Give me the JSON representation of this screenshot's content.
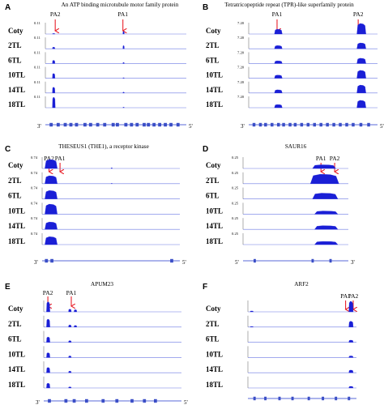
{
  "chart_data": [
    {
      "type": "area",
      "panel_label": "A",
      "title": "An ATP binding microtubule motor family protein",
      "samples": [
        "Coty",
        "2TL",
        "6TL",
        "10TL",
        "14TL",
        "18TL"
      ],
      "ymax_labels": [
        "0.11",
        "0.11",
        "0.11",
        "0.11",
        "0.11",
        "0.11"
      ],
      "ymax": 0.11,
      "strand_left": "3'",
      "strand_right": "5'",
      "sites": [
        {
          "name": "PA2",
          "x": 0.07
        },
        {
          "name": "PA1",
          "x": 0.55
        }
      ],
      "peaks": [
        [
          {
            "x": 0.05,
            "w": 0.018,
            "h": 0.05
          },
          {
            "x": 0.55,
            "w": 0.01,
            "h": 0.25
          }
        ],
        [
          {
            "x": 0.05,
            "w": 0.018,
            "h": 0.15
          },
          {
            "x": 0.55,
            "w": 0.01,
            "h": 0.3
          }
        ],
        [
          {
            "x": 0.05,
            "w": 0.018,
            "h": 0.3
          },
          {
            "x": 0.55,
            "w": 0.01,
            "h": 0.1
          }
        ],
        [
          {
            "x": 0.05,
            "w": 0.018,
            "h": 0.45
          },
          {
            "x": 0.55,
            "w": 0.01,
            "h": 0.05
          }
        ],
        [
          {
            "x": 0.05,
            "w": 0.018,
            "h": 0.55
          },
          {
            "x": 0.55,
            "w": 0.01,
            "h": 0.08
          }
        ],
        [
          {
            "x": 0.05,
            "w": 0.02,
            "h": 1.0
          },
          {
            "x": 0.55,
            "w": 0.01,
            "h": 0.05
          }
        ]
      ],
      "exons": [
        0.03,
        0.08,
        0.13,
        0.17,
        0.21,
        0.27,
        0.31,
        0.36,
        0.41,
        0.47,
        0.5,
        0.56,
        0.6,
        0.64,
        0.69,
        0.72,
        0.76,
        0.8,
        0.84,
        0.88,
        0.93
      ],
      "exon_color": "#3b4fc7"
    },
    {
      "type": "area",
      "panel_label": "B",
      "title": "Tetratricopeptide repeat (TPR)-like superfamily protein",
      "samples": [
        "Coty",
        "2TL",
        "6TL",
        "10TL",
        "14TL",
        "18TL"
      ],
      "ymax_labels": [
        "7.20",
        "7.20",
        "7.20",
        "7.20",
        "7.20",
        "7.20"
      ],
      "ymax": 7.2,
      "strand_left": "3'",
      "strand_right": "5'",
      "sites": [
        {
          "name": "PA1",
          "x": 0.22
        },
        {
          "name": "PA2",
          "x": 0.85
        }
      ],
      "peaks": [
        [
          {
            "x": 0.2,
            "w": 0.06,
            "h": 0.45
          },
          {
            "x": 0.84,
            "w": 0.07,
            "h": 1.0
          }
        ],
        [
          {
            "x": 0.2,
            "w": 0.06,
            "h": 0.3
          },
          {
            "x": 0.84,
            "w": 0.07,
            "h": 0.55
          }
        ],
        [
          {
            "x": 0.2,
            "w": 0.06,
            "h": 0.25
          },
          {
            "x": 0.84,
            "w": 0.07,
            "h": 0.5
          }
        ],
        [
          {
            "x": 0.2,
            "w": 0.06,
            "h": 0.3
          },
          {
            "x": 0.84,
            "w": 0.07,
            "h": 0.75
          }
        ],
        [
          {
            "x": 0.2,
            "w": 0.06,
            "h": 0.3
          },
          {
            "x": 0.84,
            "w": 0.07,
            "h": 0.75
          }
        ],
        [
          {
            "x": 0.2,
            "w": 0.06,
            "h": 0.3
          },
          {
            "x": 0.84,
            "w": 0.07,
            "h": 0.7
          }
        ]
      ],
      "exons": [
        0.03,
        0.08,
        0.12,
        0.17,
        0.22,
        0.26,
        0.31,
        0.35,
        0.4,
        0.45,
        0.5,
        0.55,
        0.6,
        0.65,
        0.7,
        0.75,
        0.8,
        0.86,
        0.92
      ],
      "exon_color": "#3b4fc7"
    },
    {
      "type": "area",
      "panel_label": "C",
      "title": "THESEUS1 (THE1), a receptor kinase",
      "samples": [
        "Coty",
        "2TL",
        "6TL",
        "10TL",
        "14TL",
        "18TL"
      ],
      "ymax_labels": [
        "0.74",
        "0.74",
        "0.74",
        "0.74",
        "0.74",
        "0.74"
      ],
      "ymax": 0.74,
      "strand_left": "3'",
      "strand_right": "5'",
      "sites": [
        {
          "name": "PA2",
          "x": 0.05
        },
        {
          "name": "PA1",
          "x": 0.13
        }
      ],
      "peaks": [
        [
          {
            "x": 0.02,
            "w": 0.09,
            "h": 0.85
          },
          {
            "x": 0.5,
            "w": 0.01,
            "h": 0.06
          }
        ],
        [
          {
            "x": 0.02,
            "w": 0.09,
            "h": 0.75
          },
          {
            "x": 0.5,
            "w": 0.01,
            "h": 0.03
          }
        ],
        [
          {
            "x": 0.02,
            "w": 0.09,
            "h": 0.8
          }
        ],
        [
          {
            "x": 0.02,
            "w": 0.09,
            "h": 0.95
          }
        ],
        [
          {
            "x": 0.02,
            "w": 0.09,
            "h": 0.7
          }
        ],
        [
          {
            "x": 0.02,
            "w": 0.09,
            "h": 0.75
          }
        ]
      ],
      "exons": [
        0.02,
        0.06,
        0.93
      ],
      "exon_color": "#3b4fc7"
    },
    {
      "type": "area",
      "panel_label": "D",
      "title": "SAUR16",
      "samples": [
        "Coty",
        "2TL",
        "6TL",
        "10TL",
        "14TL",
        "18TL"
      ],
      "ymax_labels": [
        "0.25",
        "0.25",
        "0.25",
        "0.25",
        "0.25",
        "0.25"
      ],
      "ymax": 0.25,
      "strand_left": "5'",
      "strand_right": "3'",
      "sites": [
        {
          "name": "PA1",
          "x": 0.74
        },
        {
          "name": "PA2",
          "x": 0.87
        }
      ],
      "peaks": [
        [
          {
            "x": 0.66,
            "w": 0.22,
            "h": 0.35
          }
        ],
        [
          {
            "x": 0.64,
            "w": 0.27,
            "h": 0.9
          }
        ],
        [
          {
            "x": 0.66,
            "w": 0.24,
            "h": 0.55
          }
        ],
        [
          {
            "x": 0.68,
            "w": 0.22,
            "h": 0.3
          }
        ],
        [
          {
            "x": 0.68,
            "w": 0.22,
            "h": 0.35
          }
        ],
        [
          {
            "x": 0.68,
            "w": 0.22,
            "h": 0.3
          }
        ]
      ],
      "exons": [
        0.1,
        0.65,
        0.82
      ],
      "exon_color": "#3b4fc7"
    },
    {
      "type": "area",
      "panel_label": "E",
      "title": "APUM23",
      "samples": [
        "Coty",
        "2TL",
        "6TL",
        "10TL",
        "14TL",
        "18TL"
      ],
      "ymax_labels": [
        "",
        "",
        "",
        "",
        "",
        ""
      ],
      "ymax": 1.0,
      "strand_left": "3'",
      "strand_right": "5'",
      "sites": [
        {
          "name": "PA2",
          "x": 0.03
        },
        {
          "name": "PA1",
          "x": 0.2
        }
      ],
      "peaks": [
        [
          {
            "x": 0.02,
            "w": 0.025,
            "h": 0.95
          },
          {
            "x": 0.18,
            "w": 0.02,
            "h": 0.25
          },
          {
            "x": 0.22,
            "w": 0.02,
            "h": 0.2
          }
        ],
        [
          {
            "x": 0.02,
            "w": 0.025,
            "h": 0.75
          },
          {
            "x": 0.18,
            "w": 0.02,
            "h": 0.2
          },
          {
            "x": 0.22,
            "w": 0.02,
            "h": 0.15
          }
        ],
        [
          {
            "x": 0.02,
            "w": 0.025,
            "h": 0.5
          },
          {
            "x": 0.18,
            "w": 0.02,
            "h": 0.15
          }
        ],
        [
          {
            "x": 0.02,
            "w": 0.025,
            "h": 0.45
          },
          {
            "x": 0.18,
            "w": 0.02,
            "h": 0.15
          }
        ],
        [
          {
            "x": 0.02,
            "w": 0.025,
            "h": 0.5
          },
          {
            "x": 0.18,
            "w": 0.02,
            "h": 0.15
          }
        ],
        [
          {
            "x": 0.02,
            "w": 0.025,
            "h": 0.45
          },
          {
            "x": 0.18,
            "w": 0.02,
            "h": 0.1
          }
        ]
      ],
      "exons": [
        0.03,
        0.15,
        0.21,
        0.3,
        0.42,
        0.52,
        0.63,
        0.72,
        0.8
      ],
      "exon_color": "#3b4fc7"
    },
    {
      "type": "area",
      "panel_label": "F",
      "title": "ARF2",
      "samples": [
        "Coty",
        "2TL",
        "6TL",
        "10TL",
        "14TL",
        "18TL"
      ],
      "ymax_labels": [
        "",
        "",
        "",
        "",
        "",
        ""
      ],
      "ymax": 1.0,
      "strand_left": "",
      "strand_right": "",
      "sites": [
        {
          "name": "PA1",
          "x": 0.9
        },
        {
          "name": "PA2",
          "x": 0.97
        }
      ],
      "peaks": [
        [
          {
            "x": 0.02,
            "w": 0.03,
            "h": 0.08
          },
          {
            "x": 0.93,
            "w": 0.04,
            "h": 1.0
          }
        ],
        [
          {
            "x": 0.02,
            "w": 0.03,
            "h": 0.05
          },
          {
            "x": 0.93,
            "w": 0.04,
            "h": 0.55
          }
        ],
        [
          {
            "x": 0.93,
            "w": 0.04,
            "h": 0.2
          }
        ],
        [
          {
            "x": 0.93,
            "w": 0.04,
            "h": 0.15
          }
        ],
        [
          {
            "x": 0.93,
            "w": 0.04,
            "h": 0.25
          }
        ],
        [
          {
            "x": 0.93,
            "w": 0.04,
            "h": 0.15
          }
        ]
      ],
      "exons": [
        0.05,
        0.15,
        0.28,
        0.4,
        0.55,
        0.68,
        0.8,
        0.92
      ],
      "exon_color": "#3b4fc7"
    }
  ],
  "colors": {
    "coverage": "#1a1fd6",
    "baseline": "#6b79e3",
    "arrow": "#e8202a",
    "exon": "#3b4fc7",
    "intron": "#7a86e0"
  }
}
